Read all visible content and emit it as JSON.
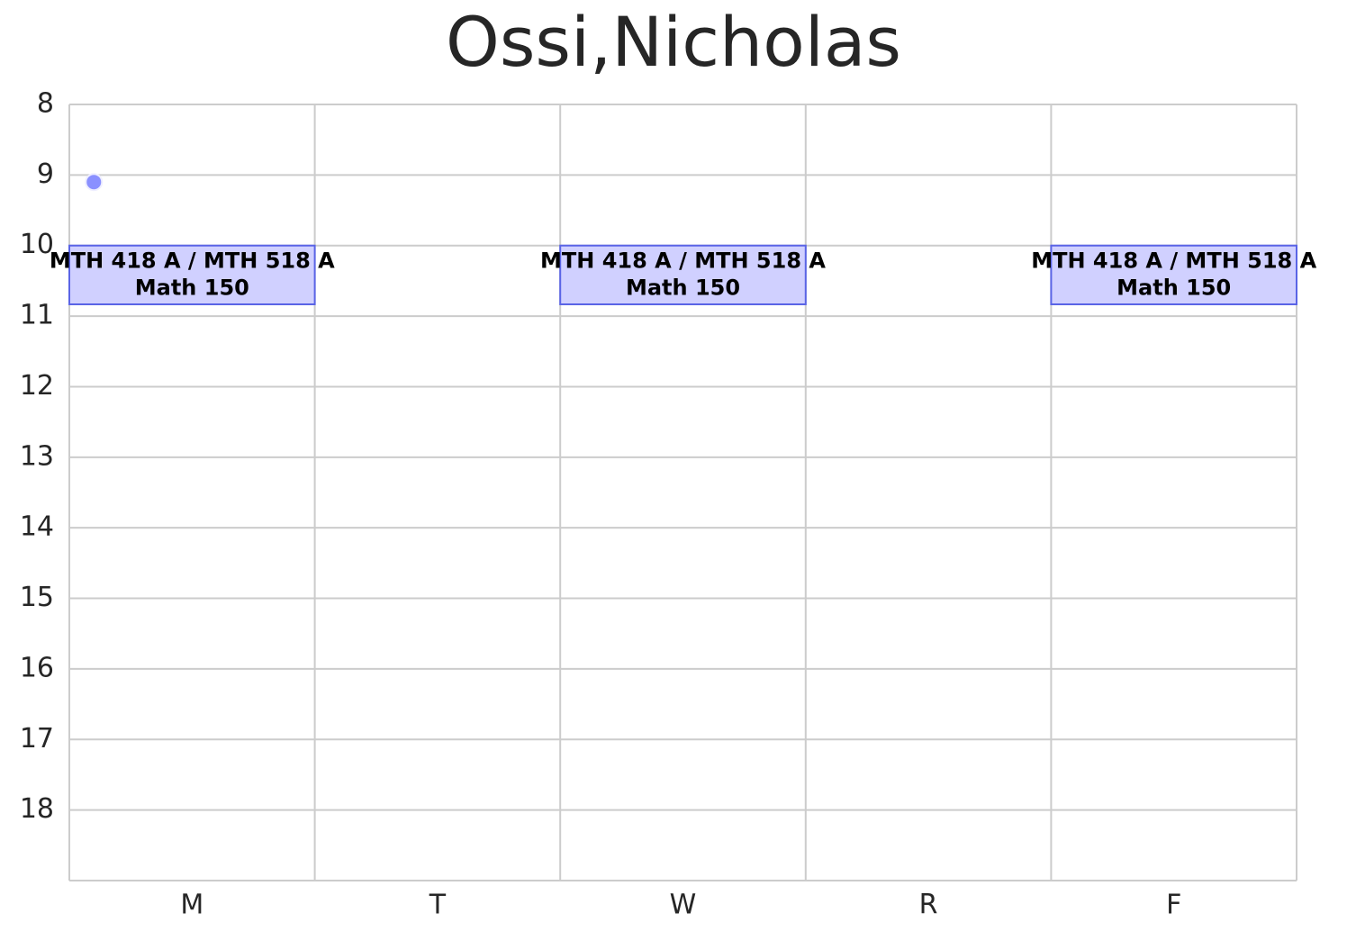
{
  "chart_data": {
    "type": "schedule",
    "title": "Ossi,Nicholas",
    "categories": [
      "M",
      "T",
      "W",
      "R",
      "F"
    ],
    "ylim": [
      8,
      19
    ],
    "yticks": [
      8,
      9,
      10,
      11,
      12,
      13,
      14,
      15,
      16,
      17,
      18
    ],
    "y_inverted": true,
    "grid": true,
    "color": "#d0d0ff",
    "edge_color": "#5a64e6",
    "events": [
      {
        "day": "M",
        "start": 10,
        "end": 10.833,
        "labels": [
          "MTH 418 A / MTH 518 A",
          "Math 150"
        ]
      },
      {
        "day": "W",
        "start": 10,
        "end": 10.833,
        "labels": [
          "MTH 418 A / MTH 518 A",
          "Math 150"
        ]
      },
      {
        "day": "F",
        "start": 10,
        "end": 10.833,
        "labels": [
          "MTH 418 A / MTH 518 A",
          "Math 150"
        ]
      }
    ],
    "marker": {
      "x": 0.1,
      "y": 9.1,
      "color": "#8a90ff"
    }
  }
}
